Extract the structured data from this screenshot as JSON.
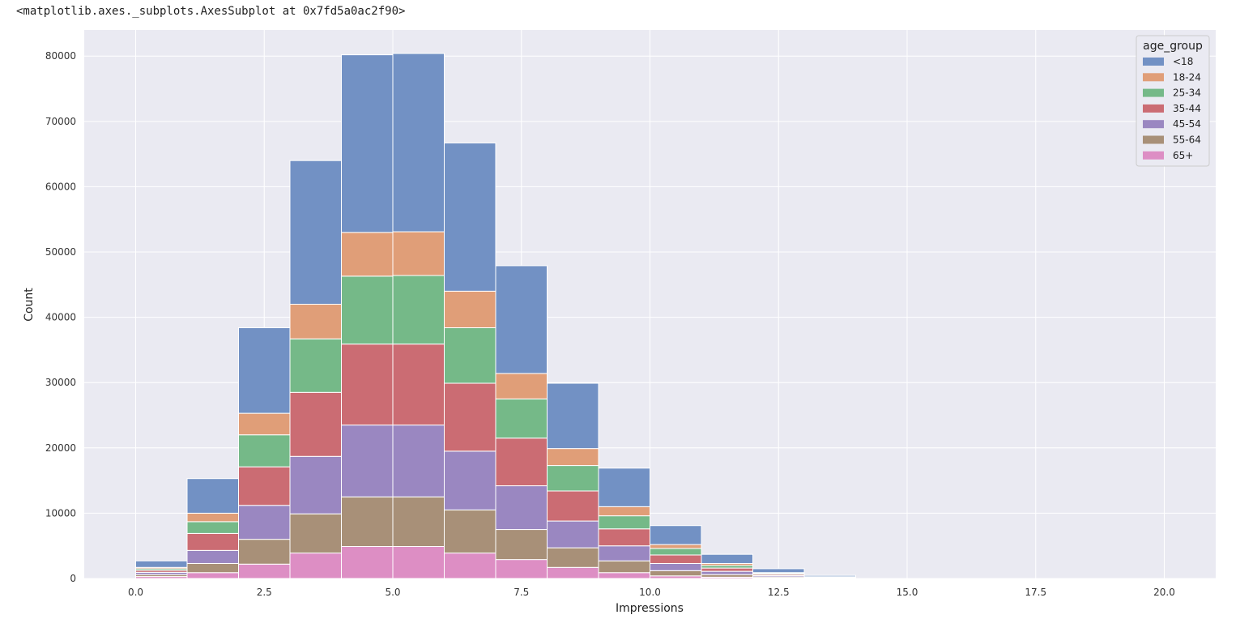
{
  "header_text": "<matplotlib.axes._subplots.AxesSubplot at 0x7fd5a0ac2f90>",
  "chart_data": {
    "type": "bar",
    "stacked": true,
    "xlabel": "Impressions",
    "ylabel": "Count",
    "xlim": [
      -1,
      21
    ],
    "ylim": [
      0,
      84000
    ],
    "xticks": [
      0.0,
      2.5,
      5.0,
      7.5,
      10.0,
      12.5,
      15.0,
      17.5,
      20.0
    ],
    "xtick_labels": [
      "0.0",
      "2.5",
      "5.0",
      "7.5",
      "10.0",
      "12.5",
      "15.0",
      "17.5",
      "20.0"
    ],
    "yticks": [
      0,
      10000,
      20000,
      30000,
      40000,
      50000,
      60000,
      70000,
      80000
    ],
    "ytick_labels": [
      "0",
      "10000",
      "20000",
      "30000",
      "40000",
      "50000",
      "60000",
      "70000",
      "80000"
    ],
    "grid": true,
    "legend": {
      "title": "age_group",
      "placement": "top-right"
    },
    "bin_edges": [
      0,
      1,
      2,
      3,
      4,
      5,
      6,
      7,
      8,
      9,
      10,
      11,
      12,
      13,
      14
    ],
    "series": [
      {
        "name": "65+",
        "color": "#dd8ec4",
        "values": [
          300,
          900,
          2200,
          3900,
          4900,
          4900,
          3900,
          2900,
          1700,
          900,
          400,
          200,
          100,
          30
        ]
      },
      {
        "name": "55-64",
        "color": "#a89078",
        "values": [
          300,
          1400,
          3800,
          6000,
          7600,
          7600,
          6600,
          4600,
          3000,
          1800,
          800,
          400,
          150,
          50
        ]
      },
      {
        "name": "45-54",
        "color": "#9a87c1",
        "values": [
          350,
          2000,
          5200,
          8800,
          11000,
          11000,
          9000,
          6700,
          4100,
          2300,
          1100,
          500,
          200,
          60
        ]
      },
      {
        "name": "35-44",
        "color": "#cb6c73",
        "values": [
          300,
          2600,
          5900,
          9800,
          12400,
          12400,
          10400,
          7300,
          4600,
          2600,
          1300,
          500,
          200,
          60
        ]
      },
      {
        "name": "25-34",
        "color": "#75b988",
        "values": [
          250,
          1800,
          4900,
          8200,
          10400,
          10500,
          8500,
          6000,
          3900,
          2000,
          1000,
          400,
          150,
          40
        ]
      },
      {
        "name": "18-24",
        "color": "#e09e78",
        "values": [
          200,
          1300,
          3300,
          5300,
          6700,
          6700,
          5600,
          3900,
          2600,
          1400,
          600,
          300,
          100,
          30
        ]
      },
      {
        "name": "<18",
        "color": "#7291c4",
        "values": [
          1000,
          5300,
          13100,
          22000,
          27200,
          27300,
          22700,
          16500,
          10000,
          5900,
          2900,
          1400,
          600,
          200
        ]
      }
    ],
    "legend_order": [
      "<18",
      "18-24",
      "25-34",
      "35-44",
      "45-54",
      "55-64",
      "65+"
    ]
  }
}
